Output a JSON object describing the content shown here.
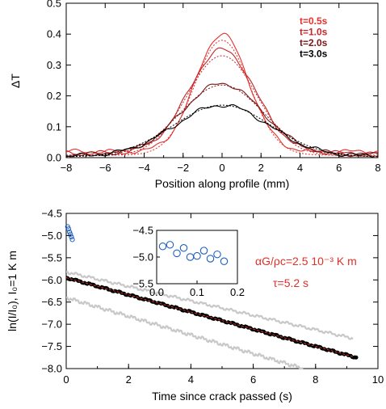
{
  "chart_data": [
    {
      "type": "line",
      "xlabel": "Position along profile (mm)",
      "ylabel": "ΔT",
      "xlim": [
        -8,
        8
      ],
      "ylim": [
        0,
        0.5
      ],
      "xticks": [
        -8,
        -6,
        -4,
        -2,
        0,
        2,
        4,
        6,
        8
      ],
      "xtick_labels": [
        "−8",
        "−6",
        "−4",
        "−2",
        "0",
        "2",
        "4",
        "6",
        "8"
      ],
      "yticks": [
        0,
        0.1,
        0.2,
        0.3,
        0.4,
        0.5
      ],
      "ytick_labels": [
        "0.0",
        "0.1",
        "0.2",
        "0.3",
        "0.4",
        "0.5"
      ],
      "legend_position": "top-right",
      "series": [
        {
          "name": "t=0.5s",
          "color": "#e8312b",
          "peak": 0.4,
          "model_peak": 0.38,
          "baseline": 0.02
        },
        {
          "name": "t=1.0s",
          "color": "#c4262a",
          "peak": 0.35,
          "model_peak": 0.33,
          "baseline": 0.015
        },
        {
          "name": "t=2.0s",
          "color": "#7a1616",
          "peak": 0.24,
          "model_peak": 0.235,
          "baseline": 0.01
        },
        {
          "name": "t=3.0s",
          "color": "#000000",
          "peak": 0.17,
          "model_peak": 0.17,
          "baseline": 0.005
        }
      ]
    },
    {
      "type": "scatter",
      "xlabel": "Time since crack passed (s)",
      "ylabel": "ln(I/I₀), I₀=1 K m",
      "xlim": [
        0,
        10
      ],
      "ylim": [
        -8.0,
        -4.5
      ],
      "xticks": [
        0,
        2,
        4,
        6,
        8,
        10
      ],
      "xtick_labels": [
        "0",
        "2",
        "4",
        "6",
        "8",
        "10"
      ],
      "yticks": [
        -8.0,
        -7.5,
        -7.0,
        -6.5,
        -6.0,
        -5.5,
        -5.0,
        -4.5
      ],
      "ytick_labels": [
        "−8.0",
        "−7.5",
        "−7.0",
        "−6.5",
        "−6.0",
        "−5.5",
        "−5.0",
        "−4.5"
      ],
      "annotations": [
        "αG/ρc=2.5 10⁻³ K m",
        "τ=5.2 s"
      ],
      "series": [
        {
          "name": "",
          "role": "upper-bound",
          "color": "#c8c8c8",
          "x": [
            0,
            9.2
          ],
          "y": [
            -5.82,
            -7.32
          ]
        },
        {
          "name": "",
          "role": "lower-bound",
          "color": "#c8c8c8",
          "x": [
            0,
            7.6
          ],
          "y": [
            -6.4,
            -8.0
          ]
        },
        {
          "name": "",
          "role": "data",
          "color": "#000000",
          "x": [
            0,
            9.3
          ],
          "y": [
            -5.95,
            -7.75
          ]
        },
        {
          "name": "",
          "role": "fit",
          "color": "#e0302a",
          "x": [
            0,
            9.3
          ],
          "y": [
            -5.95,
            -7.75
          ]
        },
        {
          "name": "",
          "role": "early-points",
          "color": "#1f5fbf",
          "x": [
            0.02,
            0.05,
            0.08,
            0.11,
            0.14,
            0.17
          ],
          "y": [
            -4.8,
            -4.85,
            -4.92,
            -4.97,
            -5.03,
            -5.09
          ]
        }
      ],
      "inset": {
        "xlim": [
          0,
          0.2
        ],
        "ylim": [
          -5.5,
          -4.5
        ],
        "xticks": [
          0,
          0.1,
          0.2
        ],
        "xtick_labels": [
          "0.0",
          "0.1",
          "0.2"
        ],
        "yticks": [
          -5.5,
          -5.0,
          -4.5
        ],
        "ytick_labels": [
          "−5.5",
          "−5.0",
          "−4.5"
        ],
        "points": {
          "x": [
            0.015,
            0.033,
            0.05,
            0.067,
            0.083,
            0.1,
            0.117,
            0.133,
            0.15,
            0.167
          ],
          "y": [
            -4.8,
            -4.77,
            -4.93,
            -4.83,
            -5.0,
            -4.98,
            -4.88,
            -5.03,
            -4.95,
            -5.08
          ]
        }
      }
    }
  ]
}
